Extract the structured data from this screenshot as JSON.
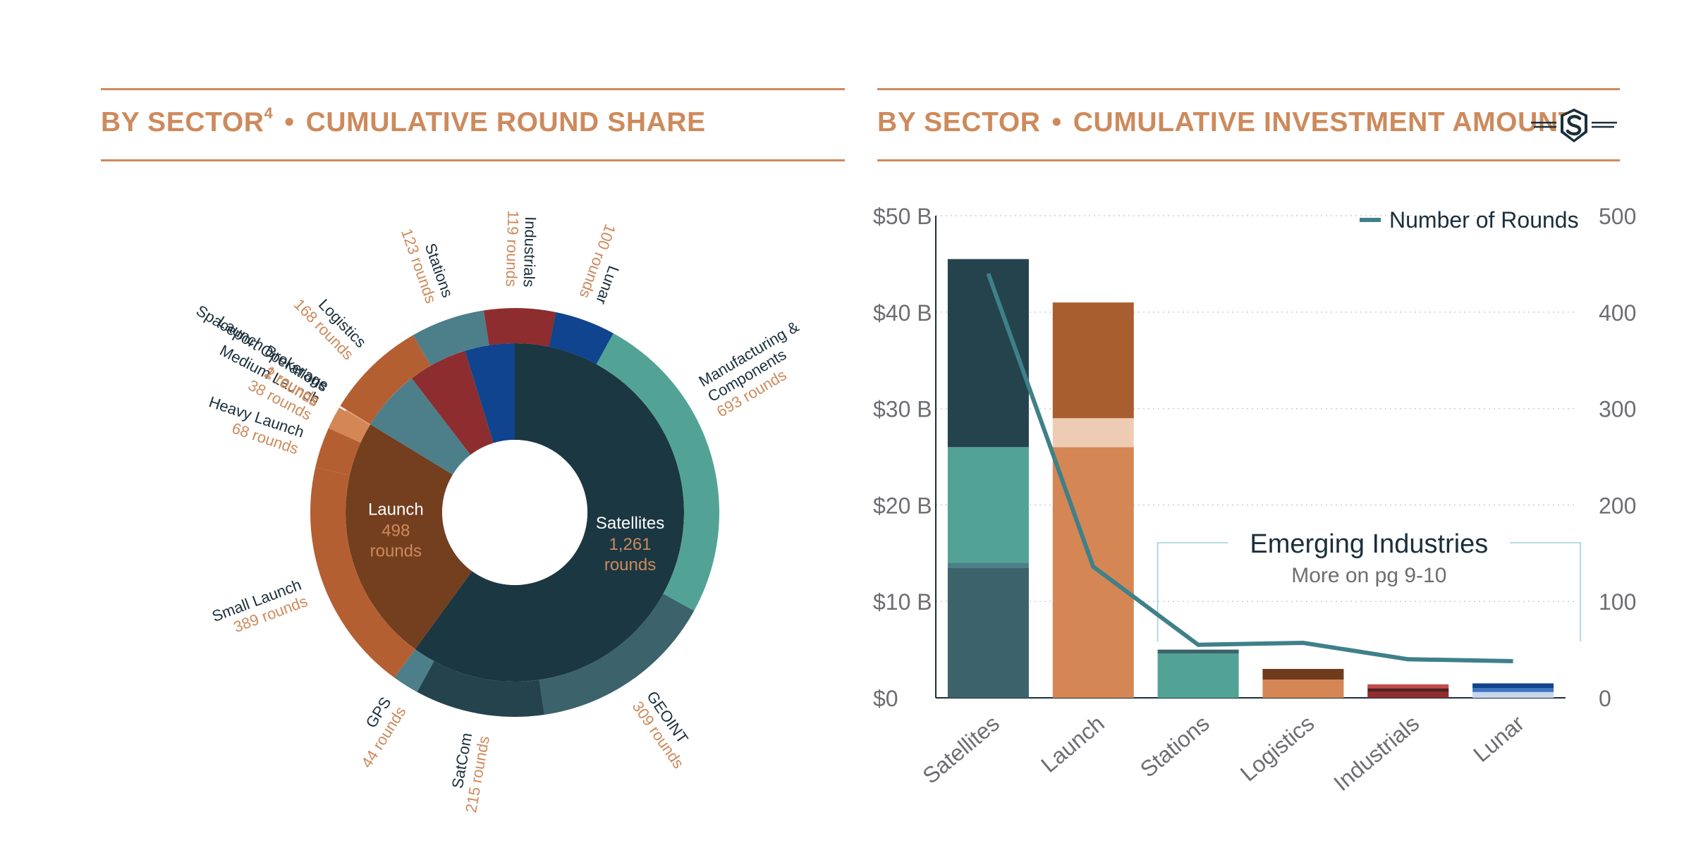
{
  "left": {
    "title_main": "BY SECTOR",
    "title_sup": "4",
    "title_sep": "•",
    "title_rest": "CUMULATIVE ROUND SHARE"
  },
  "right": {
    "title_main": "BY SECTOR",
    "title_sep": "•",
    "title_rest": "CUMULATIVE INVESTMENT AMOUNT"
  },
  "colors": {
    "accent": "#cd8a5c",
    "navy": "#1b3742",
    "teal": "#52a396",
    "text_dark": "#1b2f3b",
    "text_orange": "#cd8a5c"
  },
  "chart_data": [
    {
      "type": "pie",
      "variant": "sunburst",
      "inner": [
        {
          "name": "Satellites",
          "value": 1261,
          "value_label": "1,261",
          "unit": "rounds",
          "color": "#1b3742"
        },
        {
          "name": "Launch",
          "value": 498,
          "value_label": "498",
          "unit": "rounds",
          "color": "#743f1f"
        },
        {
          "name": "Stations",
          "value": 123,
          "color": "#4c7f8a"
        },
        {
          "name": "Industrials",
          "value": 119,
          "color": "#8e2d2f"
        },
        {
          "name": "Lunar",
          "value": 100,
          "color": "#10448e"
        }
      ],
      "outer": [
        {
          "name": "Manufacturing & Components",
          "lines": [
            "Manufacturing &",
            "Components"
          ],
          "count": "693 rounds",
          "value": 693,
          "color": "#52a396"
        },
        {
          "name": "GEOINT",
          "lines": [
            "GEOINT"
          ],
          "count": "309 rounds",
          "value": 309,
          "color": "#3c626b"
        },
        {
          "name": "SatCom",
          "lines": [
            "SatCom"
          ],
          "count": "215 rounds",
          "value": 215,
          "color": "#24434d"
        },
        {
          "name": "GPS",
          "lines": [
            "GPS"
          ],
          "count": "44 rounds",
          "value": 44,
          "color": "#4c7f8a"
        },
        {
          "name": "Small Launch",
          "lines": [
            "Small Launch"
          ],
          "count": "389 rounds",
          "value": 389,
          "color": "#b45f32"
        },
        {
          "name": "Heavy Launch",
          "lines": [
            "Heavy Launch"
          ],
          "count": "68 rounds",
          "value": 68,
          "color": "#b45f32"
        },
        {
          "name": "Medium Launch",
          "lines": [
            "Medium Launch"
          ],
          "count": "38 rounds",
          "value": 38,
          "color": "#d48655"
        },
        {
          "name": "Spaceport Operations",
          "lines": [
            "Spaceport Operations"
          ],
          "count": "2 rounds",
          "value": 2,
          "color": "#d48655"
        },
        {
          "name": "Launch Brokerage",
          "lines": [
            "Launch Brokerage"
          ],
          "count": "1 rounds",
          "value": 1,
          "color": "#edcbb5"
        },
        {
          "name": "Logistics",
          "lines": [
            "Logistics"
          ],
          "count": "168 rounds",
          "value": 168,
          "color": "#b45f32"
        },
        {
          "name": "Stations",
          "lines": [
            "Stations"
          ],
          "count": "123 rounds",
          "value": 123,
          "color": "#4c7f8a"
        },
        {
          "name": "Industrials",
          "lines": [
            "Industrials"
          ],
          "count": "119 rounds",
          "value": 119,
          "color": "#8e2d2f"
        },
        {
          "name": "Lunar",
          "lines": [
            "Lunar"
          ],
          "count": "100 rounds",
          "value": 100,
          "color": "#10448e"
        }
      ]
    },
    {
      "type": "bar",
      "stacked": true,
      "categories": [
        "Satellites",
        "Launch",
        "Stations",
        "Logistics",
        "Industrials",
        "Lunar"
      ],
      "stacks": [
        [
          {
            "value": 13.5,
            "color": "#3c626b"
          },
          {
            "value": 0.5,
            "color": "#4c7f8a"
          },
          {
            "value": 12.0,
            "color": "#52a396"
          },
          {
            "value": 19.5,
            "color": "#24434d"
          }
        ],
        [
          {
            "value": 26.0,
            "color": "#d48655"
          },
          {
            "value": 3.0,
            "color": "#eeccb3"
          },
          {
            "value": 12.0,
            "color": "#a95e2f"
          }
        ],
        [
          {
            "value": 4.6,
            "color": "#52a396"
          },
          {
            "value": 0.4,
            "color": "#3c626b"
          }
        ],
        [
          {
            "value": 1.9,
            "color": "#d48655"
          },
          {
            "value": 1.1,
            "color": "#6e3c1d"
          }
        ],
        [
          {
            "value": 0.6,
            "color": "#8e2d2f"
          },
          {
            "value": 0.4,
            "color": "#5a1c1d"
          },
          {
            "value": 0.4,
            "color": "#c44b4b"
          }
        ],
        [
          {
            "value": 0.6,
            "color": "#c7d8ec"
          },
          {
            "value": 0.4,
            "color": "#3f74c2"
          },
          {
            "value": 0.5,
            "color": "#10448e"
          }
        ]
      ],
      "line": {
        "name": "Number of Rounds",
        "values": [
          440,
          136,
          55,
          57,
          40,
          38
        ],
        "color": "#3f8089"
      },
      "y_ticks": [
        "$0",
        "$10 B",
        "$20 B",
        "$30 B",
        "$40 B",
        "$50 B"
      ],
      "y2_ticks": [
        "0",
        "100",
        "200",
        "300",
        "400",
        "500"
      ],
      "ylim": [
        0,
        50
      ],
      "y2lim": [
        0,
        500
      ],
      "grid": true,
      "legend": "top-right",
      "annotation": {
        "title": "Emerging Industries",
        "subtitle": "More on pg 9-10"
      }
    }
  ]
}
